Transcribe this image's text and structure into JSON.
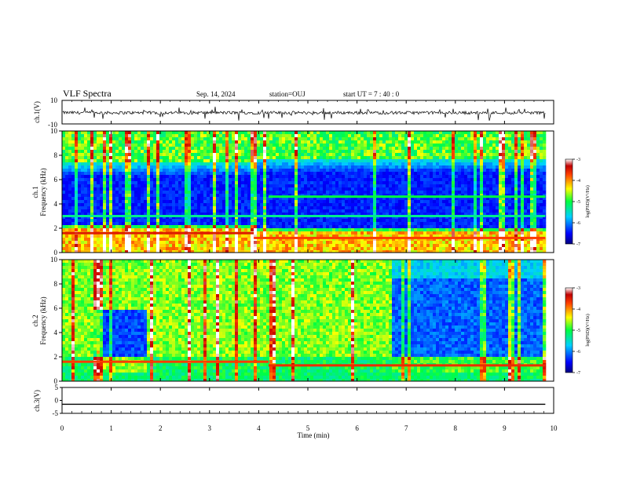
{
  "header": {
    "title": "VLF Spectra",
    "date": "Sep. 14, 2024",
    "station": "station=OUJ",
    "start": "start  UT =   7 : 40 : 0"
  },
  "chart_data": [
    {
      "type": "line",
      "panel": "ch1-waveform",
      "ylabel": "ch.1(V)",
      "ylim": [
        -10,
        10
      ],
      "yticks": [
        "10",
        "-10"
      ],
      "x": [
        0,
        9.83
      ],
      "baseline": -0.5,
      "noise_amplitude": 1.3,
      "color": "#000000"
    },
    {
      "type": "heatmap",
      "panel": "ch1-spectrogram",
      "ylabel": "ch.1\nFrequency (kHz)",
      "ylim": [
        0,
        10
      ],
      "yticks": [
        "0",
        "2",
        "4",
        "6",
        "8",
        "10"
      ],
      "colorbar": {
        "label": "log(PSD)(V²/Hz)",
        "range": [
          -7,
          -3
        ],
        "ticks": [
          "-3",
          "-4",
          "-5",
          "-6",
          "-7"
        ]
      },
      "segments": [
        {
          "t0": 0.0,
          "t1": 3.9,
          "noise_top_khz": 2.1,
          "quiet_band_khz": [
            2.2,
            7.5
          ]
        },
        {
          "t0": 3.9,
          "t1": 9.83,
          "noise_top_khz": 1.8,
          "quiet_band_khz": [
            2.1,
            7.8
          ]
        }
      ],
      "lines_khz": [
        {
          "f": 1.6,
          "t0": 0.0,
          "t1": 3.9,
          "level": -3.5
        },
        {
          "f": 1.2,
          "t0": 3.9,
          "t1": 9.83,
          "level": -3.7
        },
        {
          "f": 4.6,
          "t0": 4.2,
          "t1": 9.83,
          "level": -5.0
        },
        {
          "f": 3.0,
          "t0": 0.0,
          "t1": 9.83,
          "level": -5.3
        }
      ]
    },
    {
      "type": "heatmap",
      "panel": "ch2-spectrogram",
      "ylabel": "ch.2\nFrequency (kHz)",
      "ylim": [
        0,
        10
      ],
      "yticks": [
        "0",
        "2",
        "4",
        "6",
        "8",
        "10"
      ],
      "colorbar": {
        "label": "log(PSD)(V²/Hz)",
        "range": [
          -7,
          -3
        ],
        "ticks": [
          "-3",
          "-4",
          "-5",
          "-6",
          "-7"
        ]
      },
      "segments": [
        {
          "t0": 0.0,
          "t1": 0.6,
          "state": "noisy"
        },
        {
          "t0": 0.6,
          "t1": 1.7,
          "state": "quiet_2_to_6"
        },
        {
          "t0": 1.7,
          "t1": 6.65,
          "state": "noisy"
        },
        {
          "t0": 6.65,
          "t1": 9.83,
          "state": "quiet_2_to_10"
        }
      ],
      "lines_khz": [
        {
          "f": 1.6,
          "t0": 0.0,
          "t1": 4.2,
          "level": -3.7
        },
        {
          "f": 1.3,
          "t0": 4.2,
          "t1": 9.83,
          "level": -3.6
        }
      ]
    },
    {
      "type": "line",
      "panel": "ch3-waveform",
      "ylabel": "ch.3(V)",
      "ylim": [
        -5,
        5
      ],
      "yticks": [
        "5",
        "0",
        "-5"
      ],
      "x": [
        0,
        9.83
      ],
      "y": [
        -1.5,
        -1.5
      ],
      "color": "#000000"
    }
  ],
  "xaxis": {
    "label": "Time  (min)",
    "range": [
      0,
      10
    ],
    "ticks": [
      "0",
      "1",
      "2",
      "3",
      "4",
      "5",
      "6",
      "7",
      "8",
      "9",
      "10"
    ]
  }
}
